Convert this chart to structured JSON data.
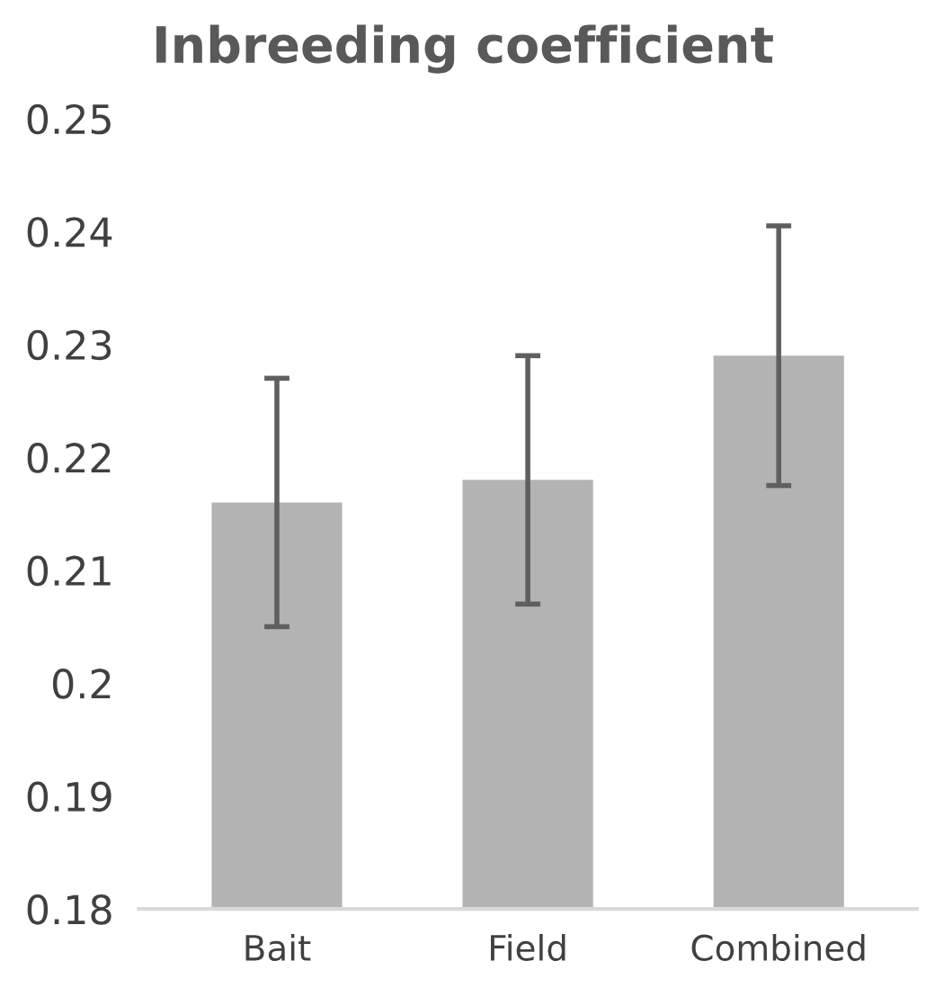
{
  "chart_data": {
    "type": "bar",
    "title": "Inbreeding coefficient",
    "categories": [
      "Bait",
      "Field",
      "Combined"
    ],
    "values": [
      0.216,
      0.218,
      0.229
    ],
    "color": "#b3b3b3",
    "errors": [
      0.011,
      0.011,
      0.0115
    ],
    "ylim": [
      0.18,
      0.25
    ],
    "yticks": [
      0.18,
      0.19,
      0.2,
      0.21,
      0.22,
      0.23,
      0.24,
      0.25
    ],
    "grid": false,
    "legend": false
  }
}
